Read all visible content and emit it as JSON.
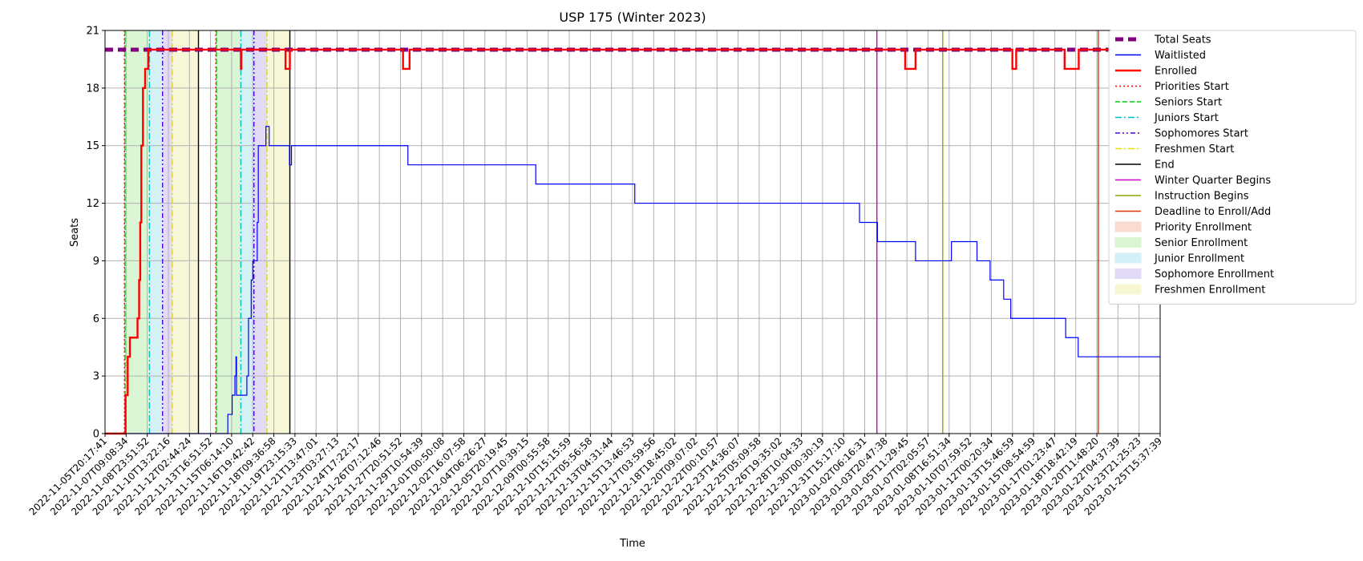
{
  "chart_data": {
    "type": "line",
    "title": "USP 175 (Winter 2023)",
    "xlabel": "Time",
    "ylabel": "Seats",
    "ylim": [
      0,
      21
    ],
    "yticks": [
      0,
      3,
      6,
      9,
      12,
      15,
      18,
      21
    ],
    "xlim": [
      "2022-11-05T20:17:41",
      "2023-01-25T15:37:39"
    ],
    "grid": true,
    "legend_position": "outside-right",
    "xtick_labels": [
      "2022-11-05T20:17:41",
      "2022-11-07T09:08:34",
      "2022-11-08T23:51:52",
      "2022-11-10T13:22:16",
      "2022-11-12T02:44:24",
      "2022-11-13T16:51:52",
      "2022-11-15T06:14:10",
      "2022-11-16T19:42:42",
      "2022-11-18T09:36:58",
      "2022-11-19T23:15:33",
      "2022-11-21T13:47:01",
      "2022-11-23T03:27:13",
      "2022-11-24T17:22:17",
      "2022-11-26T07:12:46",
      "2022-11-27T20:51:52",
      "2022-11-29T10:54:39",
      "2022-12-01T00:50:08",
      "2022-12-02T16:07:58",
      "2022-12-04T06:26:27",
      "2022-12-05T20:19:45",
      "2022-12-07T10:39:15",
      "2022-12-09T00:55:58",
      "2022-12-10T15:15:59",
      "2022-12-12T05:56:58",
      "2022-12-13T04:31:44",
      "2022-12-15T13:46:53",
      "2022-12-17T03:59:56",
      "2022-12-18T18:45:02",
      "2022-12-20T09:07:02",
      "2022-12-22T00:10:57",
      "2022-12-23T14:36:07",
      "2022-12-25T05:09:58",
      "2022-12-26T19:35:02",
      "2022-12-28T10:04:33",
      "2022-12-30T00:30:19",
      "2022-12-31T15:17:10",
      "2023-01-02T06:16:31",
      "2023-01-03T20:47:38",
      "2023-01-05T11:29:45",
      "2023-01-07T02:05:57",
      "2023-01-08T16:51:34",
      "2023-01-10T07:59:52",
      "2023-01-12T00:20:34",
      "2023-01-13T15:46:59",
      "2023-01-15T08:54:59",
      "2023-01-17T01:23:47",
      "2023-01-18T18:42:19",
      "2023-01-20T11:48:20",
      "2023-01-22T04:37:39",
      "2023-01-23T21:25:23",
      "2023-01-25T15:37:39"
    ],
    "series": [
      {
        "name": "Total Seats",
        "style": "dashed-thick",
        "color": "#800080",
        "points": [
          [
            "2022-11-05T20:17:41",
            20
          ],
          [
            "2023-01-25T15:37:39",
            20
          ]
        ]
      },
      {
        "name": "Waitlisted",
        "style": "step",
        "color": "#0000ff",
        "points": [
          [
            "2022-11-05T20:17:41",
            0
          ],
          [
            "2022-11-15T05:00:00",
            0
          ],
          [
            "2022-11-15T06:00:00",
            1
          ],
          [
            "2022-11-15T14:00:00",
            2
          ],
          [
            "2022-11-15T19:00:00",
            3
          ],
          [
            "2022-11-15T21:00:00",
            4
          ],
          [
            "2022-11-15T22:00:00",
            2
          ],
          [
            "2022-11-16T17:00:00",
            3
          ],
          [
            "2022-11-16T20:00:00",
            6
          ],
          [
            "2022-11-17T01:00:00",
            8
          ],
          [
            "2022-11-17T04:00:00",
            9
          ],
          [
            "2022-11-17T12:00:00",
            11
          ],
          [
            "2022-11-17T14:00:00",
            15
          ],
          [
            "2022-11-18T04:00:00",
            16
          ],
          [
            "2022-11-18T10:00:00",
            15
          ],
          [
            "2022-11-19T23:15:33",
            14
          ],
          [
            "2022-11-20T03:00:00",
            15
          ],
          [
            "2022-11-29T01:00:00",
            14
          ],
          [
            "2022-12-08T20:00:00",
            13
          ],
          [
            "2022-12-16T10:00:00",
            12
          ],
          [
            "2023-01-02T15:00:00",
            11
          ],
          [
            "2023-01-04T00:00:00",
            10
          ],
          [
            "2023-01-06T22:00:00",
            9
          ],
          [
            "2023-01-09T16:00:00",
            10
          ],
          [
            "2023-01-11T15:00:00",
            9
          ],
          [
            "2023-01-12T15:00:00",
            8
          ],
          [
            "2023-01-13T16:00:00",
            7
          ],
          [
            "2023-01-14T05:00:00",
            6
          ],
          [
            "2023-01-18T10:00:00",
            5
          ],
          [
            "2023-01-19T09:00:00",
            4
          ],
          [
            "2023-01-25T15:37:39",
            4
          ]
        ]
      },
      {
        "name": "Enrolled",
        "style": "step-thick",
        "color": "#ff0000",
        "points": [
          [
            "2022-11-05T20:17:41",
            0
          ],
          [
            "2022-11-07T10:00:00",
            2
          ],
          [
            "2022-11-07T14:00:00",
            4
          ],
          [
            "2022-11-07T18:00:00",
            5
          ],
          [
            "2022-11-08T08:00:00",
            6
          ],
          [
            "2022-11-08T11:00:00",
            8
          ],
          [
            "2022-11-08T13:00:00",
            11
          ],
          [
            "2022-11-08T15:00:00",
            15
          ],
          [
            "2022-11-08T18:00:00",
            18
          ],
          [
            "2022-11-08T22:00:00",
            19
          ],
          [
            "2022-11-09T04:00:00",
            20
          ],
          [
            "2022-11-16T06:00:00",
            19
          ],
          [
            "2022-11-16T07:00:00",
            20
          ],
          [
            "2022-11-19T16:00:00",
            19
          ],
          [
            "2022-11-20T00:00:00",
            20
          ],
          [
            "2022-11-28T16:00:00",
            19
          ],
          [
            "2022-11-29T04:00:00",
            20
          ],
          [
            "2023-01-06T03:00:00",
            19
          ],
          [
            "2023-01-06T22:00:00",
            20
          ],
          [
            "2023-01-14T08:00:00",
            19
          ],
          [
            "2023-01-14T15:00:00",
            20
          ],
          [
            "2023-01-18T08:00:00",
            19
          ],
          [
            "2023-01-19T10:00:00",
            20
          ],
          [
            "2023-01-22T18:00:00",
            19
          ],
          [
            "2023-01-24T16:00:00",
            18
          ],
          [
            "2023-01-25T15:37:39",
            18
          ]
        ]
      }
    ],
    "vlines": [
      {
        "name": "Priorities Start",
        "style": "dotted",
        "color": "#ff0000",
        "x": [
          "2022-11-07T08:00:00",
          "2022-11-14T08:00:00"
        ]
      },
      {
        "name": "Seniors Start",
        "style": "dashed",
        "color": "#00cc00",
        "x": [
          "2022-11-07T09:00:00",
          "2022-11-14T09:00:00"
        ]
      },
      {
        "name": "Juniors Start",
        "style": "dashdot",
        "color": "#00bfbf",
        "x": [
          "2022-11-09T06:00:00",
          "2022-11-16T06:00:00"
        ]
      },
      {
        "name": "Sophomores Start",
        "style": "dashdotdot",
        "color": "#5500dd",
        "x": [
          "2022-11-10T06:00:00",
          "2022-11-17T06:00:00"
        ]
      },
      {
        "name": "Freshmen Start",
        "style": "dashdot-light",
        "color": "#dddd00",
        "x": [
          "2022-11-11T00:00:00",
          "2022-11-18T06:00:00"
        ]
      },
      {
        "name": "End",
        "style": "solid",
        "color": "#000000",
        "x": [
          "2022-11-13T00:00:00",
          "2022-11-20T00:00:00"
        ]
      },
      {
        "name": "Winter Quarter Begins",
        "style": "solid",
        "color": "#cc00cc",
        "x": [
          "2023-01-03T23:00:00"
        ]
      },
      {
        "name": "Instruction Begins",
        "style": "solid",
        "color": "#88aa00",
        "x": [
          "2023-01-09T00:00:00"
        ]
      },
      {
        "name": "Deadline to Enroll/Add",
        "style": "solid",
        "color": "#dd3300",
        "x": [
          "2023-01-20T22:00:00"
        ]
      }
    ],
    "spans": [
      {
        "name": "Priority Enrollment",
        "color": "#fadbd2",
        "ranges": [
          [
            "2022-11-07T08:00:00",
            "2022-11-07T09:00:00"
          ],
          [
            "2022-11-14T08:00:00",
            "2022-11-14T09:00:00"
          ]
        ]
      },
      {
        "name": "Senior Enrollment",
        "color": "#d9f5d3",
        "ranges": [
          [
            "2022-11-07T09:00:00",
            "2022-11-09T06:00:00"
          ],
          [
            "2022-11-14T09:00:00",
            "2022-11-16T06:00:00"
          ]
        ]
      },
      {
        "name": "Junior Enrollment",
        "color": "#d2f0f5",
        "ranges": [
          [
            "2022-11-09T06:00:00",
            "2022-11-10T06:00:00"
          ],
          [
            "2022-11-16T06:00:00",
            "2022-11-17T06:00:00"
          ]
        ]
      },
      {
        "name": "Sophomore Enrollment",
        "color": "#e2d9f6",
        "ranges": [
          [
            "2022-11-10T06:00:00",
            "2022-11-11T00:00:00"
          ],
          [
            "2022-11-17T06:00:00",
            "2022-11-18T06:00:00"
          ]
        ]
      },
      {
        "name": "Freshmen Enrollment",
        "color": "#f7f7d6",
        "ranges": [
          [
            "2022-11-11T00:00:00",
            "2022-11-13T00:00:00"
          ],
          [
            "2022-11-18T06:00:00",
            "2022-11-20T00:00:00"
          ]
        ]
      }
    ],
    "legend": [
      {
        "label": "Total Seats",
        "kind": "line",
        "color": "#800080",
        "style": "dashed-thick"
      },
      {
        "label": "Waitlisted",
        "kind": "line",
        "color": "#0000ff",
        "style": "solid"
      },
      {
        "label": "Enrolled",
        "kind": "line",
        "color": "#ff0000",
        "style": "solid-thick"
      },
      {
        "label": "Priorities Start",
        "kind": "line",
        "color": "#ff0000",
        "style": "dotted"
      },
      {
        "label": "Seniors Start",
        "kind": "line",
        "color": "#00cc00",
        "style": "dashed"
      },
      {
        "label": "Juniors Start",
        "kind": "line",
        "color": "#00bfbf",
        "style": "dashdot"
      },
      {
        "label": "Sophomores Start",
        "kind": "line",
        "color": "#5500dd",
        "style": "dashdotdot"
      },
      {
        "label": "Freshmen Start",
        "kind": "line",
        "color": "#dddd00",
        "style": "dashdot-light"
      },
      {
        "label": "End",
        "kind": "line",
        "color": "#000000",
        "style": "solid"
      },
      {
        "label": "Winter Quarter Begins",
        "kind": "line",
        "color": "#cc00cc",
        "style": "solid"
      },
      {
        "label": "Instruction Begins",
        "kind": "line",
        "color": "#88aa00",
        "style": "solid"
      },
      {
        "label": "Deadline to Enroll/Add",
        "kind": "line",
        "color": "#dd3300",
        "style": "solid"
      },
      {
        "label": "Priority Enrollment",
        "kind": "patch",
        "color": "#fadbd2"
      },
      {
        "label": "Senior Enrollment",
        "kind": "patch",
        "color": "#d9f5d3"
      },
      {
        "label": "Junior Enrollment",
        "kind": "patch",
        "color": "#d2f0f5"
      },
      {
        "label": "Sophomore Enrollment",
        "kind": "patch",
        "color": "#e2d9f6"
      },
      {
        "label": "Freshmen Enrollment",
        "kind": "patch",
        "color": "#f7f7d6"
      }
    ]
  }
}
